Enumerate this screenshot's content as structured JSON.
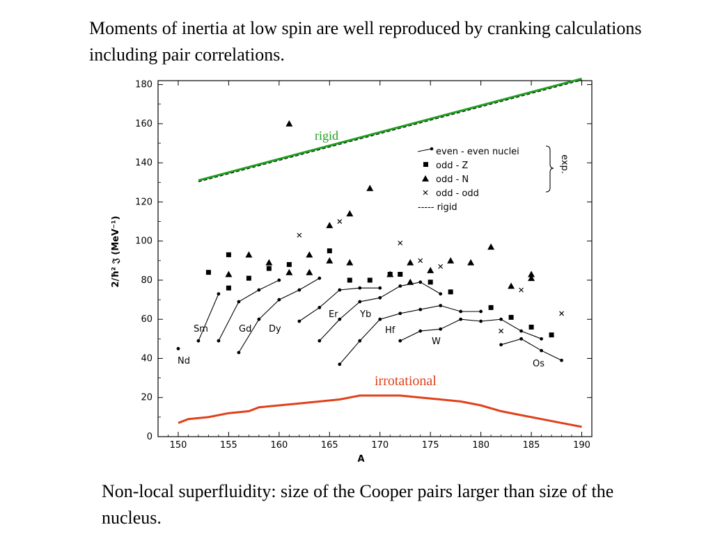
{
  "header": {
    "text": "Moments of inertia at low spin are well reproduced by cranking calculations including pair correlations."
  },
  "footer": {
    "text": "Non-local superfluidity: size of the Cooper pairs larger than size of the nucleus."
  },
  "chart_data": {
    "type": "scatter",
    "xlabel": "A",
    "ylabel": "2/ħ² 𝔍 (MeV⁻¹)",
    "xlim": [
      148,
      191
    ],
    "ylim": [
      0,
      182
    ],
    "xticks": [
      150,
      155,
      160,
      165,
      170,
      175,
      180,
      185,
      190
    ],
    "yticks": [
      0,
      20,
      40,
      60,
      80,
      100,
      120,
      140,
      160,
      180
    ],
    "legend": {
      "placement": "top-right",
      "entries": [
        "even - even nuclei",
        "odd - Z",
        "odd - N",
        "odd - odd",
        "----- rigid"
      ],
      "group_label": "exp."
    },
    "annotations": {
      "rigid": "rigid",
      "irrotational": "irrotational",
      "colors": {
        "rigid": "#1e9e1e",
        "irrotational": "#e0401a"
      }
    },
    "even_even": [
      {
        "name": "Nd",
        "points": [
          [
            150,
            45
          ]
        ]
      },
      {
        "name": "Sm",
        "points": [
          [
            152,
            49
          ],
          [
            154,
            73
          ]
        ]
      },
      {
        "name": "Gd",
        "points": [
          [
            154,
            49
          ],
          [
            156,
            69
          ],
          [
            158,
            75
          ],
          [
            160,
            80
          ]
        ]
      },
      {
        "name": "Dy",
        "points": [
          [
            156,
            43
          ],
          [
            158,
            60
          ],
          [
            160,
            70
          ],
          [
            162,
            75
          ],
          [
            164,
            81
          ]
        ]
      },
      {
        "name": "Er",
        "points": [
          [
            162,
            59
          ],
          [
            164,
            66
          ],
          [
            166,
            75
          ],
          [
            168,
            76
          ],
          [
            170,
            76
          ]
        ]
      },
      {
        "name": "Yb",
        "points": [
          [
            164,
            49
          ],
          [
            166,
            60
          ],
          [
            168,
            69
          ],
          [
            170,
            71
          ],
          [
            172,
            77
          ],
          [
            174,
            79
          ],
          [
            176,
            73
          ]
        ]
      },
      {
        "name": "Hf",
        "points": [
          [
            166,
            37
          ],
          [
            168,
            49
          ],
          [
            170,
            60
          ],
          [
            172,
            63
          ],
          [
            174,
            65
          ],
          [
            176,
            67
          ],
          [
            178,
            64
          ],
          [
            180,
            64
          ]
        ]
      },
      {
        "name": "W",
        "points": [
          [
            172,
            49
          ],
          [
            174,
            54
          ],
          [
            176,
            55
          ],
          [
            178,
            60
          ],
          [
            180,
            59
          ],
          [
            182,
            60
          ],
          [
            184,
            54
          ],
          [
            186,
            50
          ]
        ]
      },
      {
        "name": "Os",
        "points": [
          [
            182,
            47
          ],
          [
            184,
            50
          ],
          [
            186,
            44
          ],
          [
            188,
            39
          ]
        ]
      }
    ],
    "odd_Z": [
      [
        153,
        84
      ],
      [
        155,
        93
      ],
      [
        155,
        76
      ],
      [
        157,
        81
      ],
      [
        159,
        86
      ],
      [
        161,
        88
      ],
      [
        165,
        95
      ],
      [
        167,
        80
      ],
      [
        169,
        80
      ],
      [
        171,
        83
      ],
      [
        172,
        83
      ],
      [
        175,
        79
      ],
      [
        177,
        74
      ],
      [
        181,
        66
      ],
      [
        183,
        61
      ],
      [
        185,
        56
      ],
      [
        187,
        52
      ]
    ],
    "odd_N": [
      [
        155,
        83
      ],
      [
        157,
        93
      ],
      [
        159,
        89
      ],
      [
        161,
        84
      ],
      [
        161,
        160
      ],
      [
        163,
        93
      ],
      [
        163,
        84
      ],
      [
        165,
        90
      ],
      [
        165,
        108
      ],
      [
        167,
        114
      ],
      [
        167,
        89
      ],
      [
        169,
        127
      ],
      [
        171,
        83
      ],
      [
        173,
        89
      ],
      [
        173,
        79
      ],
      [
        175,
        85
      ],
      [
        177,
        90
      ],
      [
        179,
        89
      ],
      [
        181,
        97
      ],
      [
        183,
        77
      ],
      [
        185,
        83
      ],
      [
        185,
        81
      ]
    ],
    "odd_odd": [
      [
        162,
        103
      ],
      [
        166,
        110
      ],
      [
        172,
        99
      ],
      [
        174,
        90
      ],
      [
        176,
        87
      ],
      [
        182,
        54
      ],
      [
        184,
        75
      ],
      [
        188,
        63
      ]
    ],
    "rigid": {
      "x": [
        152,
        190
      ],
      "y": [
        131,
        183
      ]
    },
    "irrotational": {
      "x": [
        150,
        151,
        153,
        155,
        157,
        158,
        160,
        162,
        164,
        166,
        168,
        170,
        172,
        174,
        176,
        178,
        180,
        182,
        184,
        186,
        188,
        190
      ],
      "y": [
        7,
        9,
        10,
        12,
        13,
        15,
        16,
        17,
        18,
        19,
        21,
        21,
        21,
        20,
        19,
        18,
        16,
        13,
        11,
        9,
        7,
        5
      ]
    }
  }
}
